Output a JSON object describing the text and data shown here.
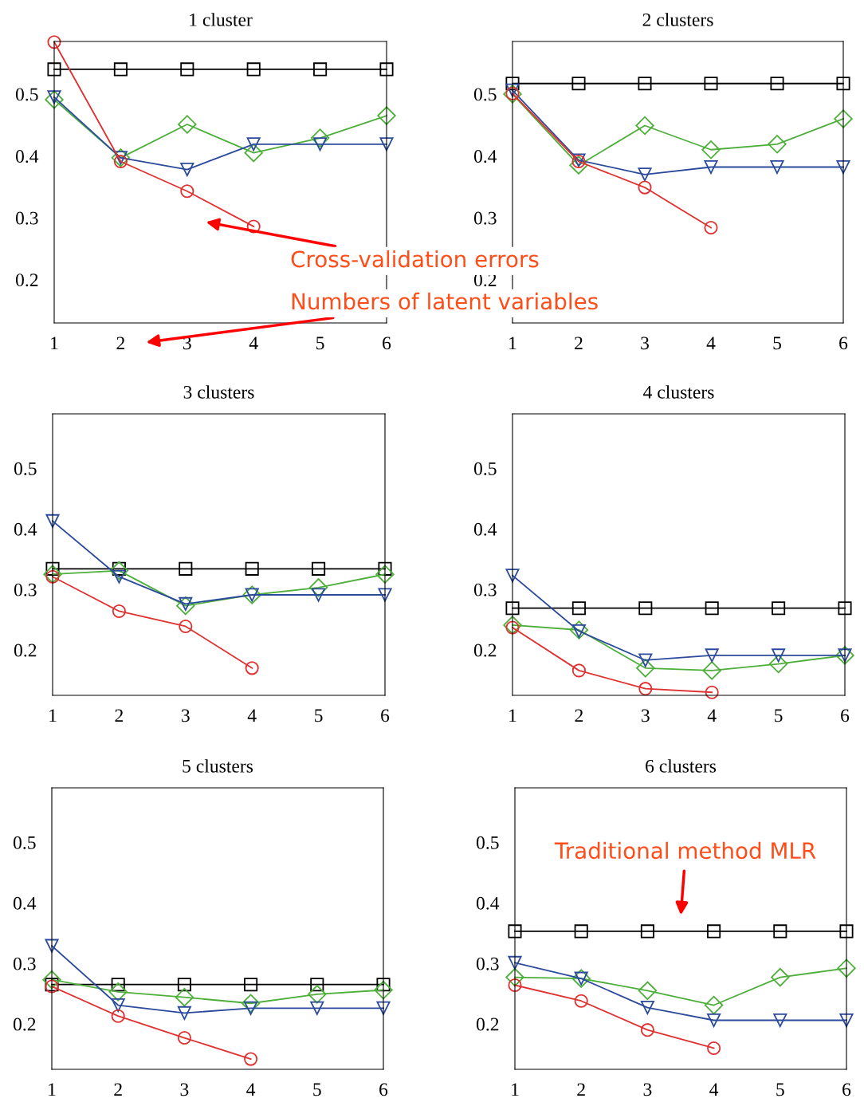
{
  "chart_data": [
    {
      "type": "line",
      "title": "1 cluster",
      "x": [
        1,
        2,
        3,
        4,
        5,
        6
      ],
      "xlim": [
        1,
        6
      ],
      "xticks": [
        1,
        2,
        3,
        4,
        5,
        6
      ],
      "ylim": [
        0.13,
        0.585
      ],
      "yticks": [
        0.2,
        0.3,
        0.4,
        0.5
      ],
      "grid": false,
      "annotations": [
        "Cross-validation errors",
        "Numbers of latent variables"
      ],
      "series": [
        {
          "color": "#000000",
          "marker": "square",
          "values": [
            0.54,
            0.54,
            0.54,
            0.54,
            0.54,
            0.54
          ]
        },
        {
          "color": "#4daf3a",
          "marker": "diamond",
          "values": [
            0.491,
            0.397,
            0.451,
            0.405,
            0.429,
            0.465
          ]
        },
        {
          "color": "#2b4a9c",
          "marker": "triangle",
          "values": [
            0.495,
            0.397,
            0.378,
            0.419,
            0.419,
            0.419
          ]
        },
        {
          "color": "#e03030",
          "marker": "circle",
          "values": [
            0.584,
            0.391,
            0.343,
            0.286,
            null,
            null
          ]
        }
      ]
    },
    {
      "type": "line",
      "title": "2 clusters",
      "x": [
        1,
        2,
        3,
        4,
        5,
        6
      ],
      "xlim": [
        1,
        6
      ],
      "xticks": [
        1,
        2,
        3,
        4,
        5,
        6
      ],
      "ylim": [
        0.13,
        0.585
      ],
      "yticks": [
        0.2,
        0.3,
        0.4,
        0.5
      ],
      "grid": false,
      "series": [
        {
          "color": "#000000",
          "marker": "square",
          "values": [
            0.517,
            0.517,
            0.517,
            0.517,
            0.517,
            0.517
          ]
        },
        {
          "color": "#4daf3a",
          "marker": "diamond",
          "values": [
            0.5,
            0.385,
            0.449,
            0.41,
            0.419,
            0.46
          ]
        },
        {
          "color": "#2b4a9c",
          "marker": "triangle",
          "values": [
            0.506,
            0.393,
            0.37,
            0.382,
            0.382,
            0.382
          ]
        },
        {
          "color": "#e03030",
          "marker": "circle",
          "values": [
            0.501,
            0.391,
            0.349,
            0.284,
            null,
            null
          ]
        }
      ]
    },
    {
      "type": "line",
      "title": "3 clusters",
      "x": [
        1,
        2,
        3,
        4,
        5,
        6
      ],
      "xlim": [
        1,
        6
      ],
      "xticks": [
        1,
        2,
        3,
        4,
        5,
        6
      ],
      "ylim": [
        0.125,
        0.59
      ],
      "yticks": [
        0.2,
        0.3,
        0.4,
        0.5
      ],
      "grid": false,
      "series": [
        {
          "color": "#000000",
          "marker": "square",
          "values": [
            0.334,
            0.334,
            0.334,
            0.334,
            0.334,
            0.334
          ]
        },
        {
          "color": "#4daf3a",
          "marker": "diamond",
          "values": [
            0.325,
            0.331,
            0.273,
            0.291,
            0.303,
            0.325
          ]
        },
        {
          "color": "#2b4a9c",
          "marker": "triangle",
          "values": [
            0.413,
            0.321,
            0.276,
            0.291,
            0.291,
            0.291
          ]
        },
        {
          "color": "#e03030",
          "marker": "circle",
          "values": [
            0.321,
            0.264,
            0.239,
            0.17,
            null,
            null
          ]
        }
      ]
    },
    {
      "type": "line",
      "title": "4 clusters",
      "x": [
        1,
        2,
        3,
        4,
        5,
        6
      ],
      "xlim": [
        1,
        6
      ],
      "xticks": [
        1,
        2,
        3,
        4,
        5,
        6
      ],
      "ylim": [
        0.125,
        0.59
      ],
      "yticks": [
        0.2,
        0.3,
        0.4,
        0.5
      ],
      "grid": false,
      "series": [
        {
          "color": "#000000",
          "marker": "square",
          "values": [
            0.269,
            0.269,
            0.269,
            0.269,
            0.269,
            0.269
          ]
        },
        {
          "color": "#4daf3a",
          "marker": "diamond",
          "values": [
            0.241,
            0.233,
            0.17,
            0.166,
            0.177,
            0.191
          ]
        },
        {
          "color": "#2b4a9c",
          "marker": "triangle",
          "values": [
            0.323,
            0.231,
            0.183,
            0.191,
            0.191,
            0.191
          ]
        },
        {
          "color": "#e03030",
          "marker": "circle",
          "values": [
            0.237,
            0.166,
            0.136,
            0.13,
            null,
            null
          ]
        }
      ]
    },
    {
      "type": "line",
      "title": "5 clusters",
      "x": [
        1,
        2,
        3,
        4,
        5,
        6
      ],
      "xlim": [
        1,
        6
      ],
      "xticks": [
        1,
        2,
        3,
        4,
        5,
        6
      ],
      "ylim": [
        0.125,
        0.59
      ],
      "yticks": [
        0.2,
        0.3,
        0.4,
        0.5
      ],
      "grid": false,
      "series": [
        {
          "color": "#000000",
          "marker": "square",
          "values": [
            0.265,
            0.265,
            0.265,
            0.265,
            0.265,
            0.265
          ]
        },
        {
          "color": "#4daf3a",
          "marker": "diamond",
          "values": [
            0.273,
            0.253,
            0.244,
            0.234,
            0.249,
            0.256
          ]
        },
        {
          "color": "#2b4a9c",
          "marker": "triangle",
          "values": [
            0.329,
            0.231,
            0.218,
            0.226,
            0.226,
            0.226
          ]
        },
        {
          "color": "#e03030",
          "marker": "circle",
          "values": [
            0.262,
            0.213,
            0.177,
            0.142,
            null,
            null
          ]
        }
      ]
    },
    {
      "type": "line",
      "title": "6 clusters",
      "x": [
        1,
        2,
        3,
        4,
        5,
        6
      ],
      "xlim": [
        1,
        6
      ],
      "xticks": [
        1,
        2,
        3,
        4,
        5,
        6
      ],
      "ylim": [
        0.125,
        0.59
      ],
      "yticks": [
        0.2,
        0.3,
        0.4,
        0.5
      ],
      "grid": false,
      "annotations": [
        "Traditional method MLR"
      ],
      "series": [
        {
          "color": "#000000",
          "marker": "square",
          "values": [
            0.353,
            0.353,
            0.353,
            0.353,
            0.353,
            0.353
          ]
        },
        {
          "color": "#4daf3a",
          "marker": "diamond",
          "values": [
            0.277,
            0.275,
            0.255,
            0.231,
            0.277,
            0.292
          ]
        },
        {
          "color": "#2b4a9c",
          "marker": "triangle",
          "values": [
            0.301,
            0.275,
            0.227,
            0.206,
            0.206,
            0.206
          ]
        },
        {
          "color": "#e03030",
          "marker": "circle",
          "values": [
            0.264,
            0.238,
            0.19,
            0.16,
            null,
            null
          ]
        }
      ]
    }
  ]
}
